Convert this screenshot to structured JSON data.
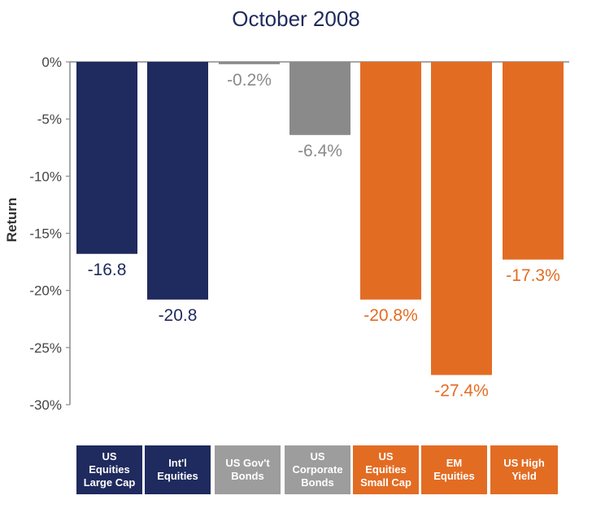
{
  "chart_data": {
    "type": "bar",
    "title": "October 2008",
    "ylabel": "Return",
    "ylim": [
      -30,
      0
    ],
    "yticks": [
      0,
      -5,
      -10,
      -15,
      -20,
      -25,
      -30
    ],
    "ytick_labels": [
      "0%",
      "-5%",
      "-10%",
      "-15%",
      "-20%",
      "-25%",
      "-30%"
    ],
    "categories": [
      "US\nEquities\nLarge Cap",
      "Int'l\nEquities",
      "US Gov't\nBonds",
      "US\nCorporate\nBonds",
      "US\nEquities\nSmall Cap",
      "EM\nEquities",
      "US High\nYield"
    ],
    "values": [
      -16.8,
      -20.8,
      -0.2,
      -6.4,
      -20.8,
      -27.4,
      -17.3
    ],
    "data_labels": [
      "-16.8",
      "-20.8",
      "-0.2%",
      "-6.4%",
      "-20.8%",
      "-27.4%",
      "-17.3%"
    ],
    "colors": [
      "#1f2a5e",
      "#1f2a5e",
      "#8a8a8a",
      "#8a8a8a",
      "#e36c23",
      "#e36c23",
      "#e36c23"
    ],
    "label_colors": [
      "#1f2a5e",
      "#1f2a5e",
      "#8a8a8a",
      "#8a8a8a",
      "#e36c23",
      "#e36c23",
      "#e36c23"
    ],
    "category_cell_colors": [
      "#1f2a5e",
      "#1f2a5e",
      "#9d9d9d",
      "#9d9d9d",
      "#e36c23",
      "#e36c23",
      "#e36c23"
    ],
    "grid": false,
    "legend": "none"
  }
}
